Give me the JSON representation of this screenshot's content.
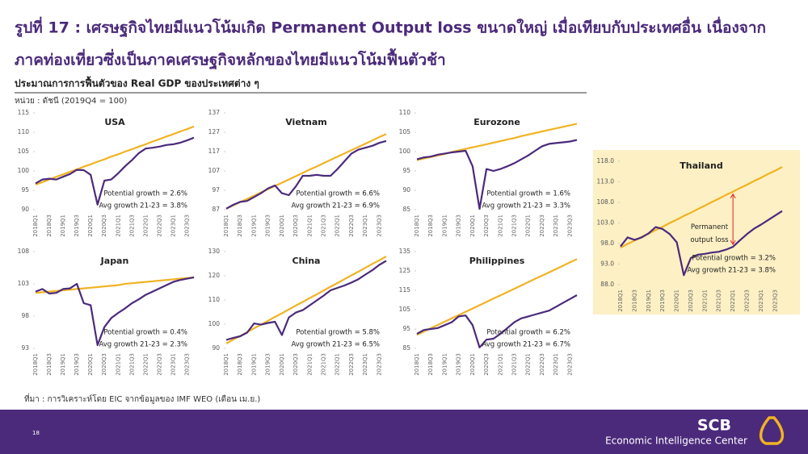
{
  "slide": {
    "title_line1": "รูปที่ 17 : เศรษฐกิจไทยมีแนวโน้มเกิด Permanent Output loss ขนาดใหญ่ เมื่อเทียบกับประเทศอื่น เนื่องจาก",
    "title_line2": "ภาคท่องเที่ยวซึ่งเป็นภาคเศรษฐกิจหลักของไทยมีแนวโน้มฟื้นตัวช้า",
    "subtitle": "ประมาณการการฟื้นตัวของ Real GDP ของประเทศต่าง ๆ",
    "unit": "หน่วย : ดัชนี (2019Q4 = 100)",
    "source": "ที่มา : การวิเคราะห์โดย EIC จากข้อมูลของ IMF WEO (เดือน เม.ย.)",
    "page": "18",
    "logo_name": "SCB",
    "logo_tagline": "Economic Intelligence Center"
  },
  "chart_data": [
    {
      "type": "line",
      "title": "USA",
      "categories": [
        "2018Q1",
        null,
        "2018Q3",
        null,
        "2019Q1",
        null,
        "2019Q3",
        null,
        "2020Q1",
        null,
        "2020Q3",
        null,
        "2021Q1",
        null,
        "2021Q3",
        null,
        "2022Q1",
        null,
        "2022Q3",
        null,
        "2023Q1",
        null,
        "2023Q3",
        null
      ],
      "series": [
        {
          "color": "#f0b323",
          "values": [
            96.5,
            97.1,
            97.8,
            98.5,
            99.1,
            99.8,
            100.4,
            101.1,
            101.7,
            102.4,
            103.0,
            103.7,
            104.3,
            105.0,
            105.6,
            106.3,
            106.9,
            107.6,
            108.2,
            108.9,
            109.5,
            110.2,
            110.8,
            111.5
          ]
        },
        {
          "color": "#4b2a7b",
          "values": [
            96.8,
            97.8,
            98.0,
            97.8,
            98.5,
            99.2,
            100.3,
            100.2,
            99.0,
            91.3,
            97.5,
            97.8,
            99.4,
            101.2,
            102.8,
            104.6,
            105.8,
            106.0,
            106.3,
            106.7,
            106.9,
            107.3,
            107.9,
            108.6
          ]
        }
      ],
      "ylim": [
        90,
        115
      ],
      "yticks": [
        90,
        95,
        100,
        105,
        110,
        115
      ],
      "annotations": [
        "Potential growth = 2.6%",
        "Avg growth 21-23 = 3.8%"
      ]
    },
    {
      "type": "line",
      "title": "Vietnam",
      "categories": [
        "2018Q1",
        null,
        "2018Q3",
        null,
        "2019Q1",
        null,
        "2019Q3",
        null,
        "2020Q1",
        null,
        "2020Q3",
        null,
        "2021Q1",
        null,
        "2021Q3",
        null,
        "2022Q1",
        null,
        "2022Q3",
        null,
        "2023Q1",
        null,
        "2023Q3",
        null
      ],
      "series": [
        {
          "color": "#f0b323",
          "values": [
            87.5,
            89.2,
            90.9,
            92.5,
            94.2,
            95.9,
            97.6,
            99.3,
            100.9,
            102.6,
            104.3,
            106.0,
            107.7,
            109.3,
            111.0,
            112.7,
            114.4,
            116.1,
            117.7,
            119.4,
            121.1,
            122.8,
            124.5,
            126.1
          ]
        },
        {
          "color": "#4b2a7b",
          "values": [
            87.5,
            89.5,
            91.0,
            91.5,
            93.5,
            95.5,
            98.0,
            99.5,
            95.5,
            94.5,
            99.0,
            104.5,
            104.5,
            105.0,
            104.5,
            104.5,
            108.0,
            112.0,
            116.0,
            118.0,
            119.0,
            120.0,
            121.5,
            122.5
          ]
        }
      ],
      "ylim": [
        87,
        137
      ],
      "yticks": [
        87,
        97,
        107,
        117,
        127,
        137
      ],
      "annotations": [
        "Potential growth = 6.6%",
        "Avg growth 21-23 = 6.9%"
      ]
    },
    {
      "type": "line",
      "title": "Eurozone",
      "categories": [
        "2018Q1",
        null,
        "2018Q3",
        null,
        "2019Q1",
        null,
        "2019Q3",
        null,
        "2020Q1",
        null,
        "2020Q3",
        null,
        "2021Q1",
        null,
        "2021Q3",
        null,
        "2022Q1",
        null,
        "2022Q3",
        null,
        "2023Q1",
        null,
        "2023Q3",
        null
      ],
      "series": [
        {
          "color": "#f0b323",
          "values": [
            97.8,
            98.2,
            98.6,
            99.0,
            99.4,
            99.9,
            100.3,
            100.7,
            101.1,
            101.5,
            101.9,
            102.3,
            102.7,
            103.1,
            103.5,
            104.0,
            104.4,
            104.8,
            105.2,
            105.6,
            106.0,
            106.4,
            106.8,
            107.2
          ]
        },
        {
          "color": "#4b2a7b",
          "values": [
            98.0,
            98.5,
            98.7,
            99.2,
            99.5,
            99.8,
            100.0,
            100.2,
            96.2,
            85.2,
            95.5,
            95.0,
            95.5,
            96.2,
            97.0,
            98.0,
            99.0,
            100.2,
            101.4,
            102.0,
            102.2,
            102.4,
            102.6,
            103.0
          ]
        }
      ],
      "ylim": [
        85,
        110
      ],
      "yticks": [
        85,
        90,
        95,
        100,
        105,
        110
      ],
      "annotations": [
        "Potential growth = 1.6%",
        "Avg growth 21-23 = 3.3%"
      ]
    },
    {
      "type": "line",
      "title": "Japan",
      "categories": [
        "2018Q1",
        null,
        "2018Q3",
        null,
        "2019Q1",
        null,
        "2019Q3",
        null,
        "2020Q1",
        null,
        "2020Q3",
        null,
        "2021Q1",
        null,
        "2021Q3",
        null,
        "2022Q1",
        null,
        "2022Q3",
        null,
        "2023Q1",
        null,
        "2023Q3",
        null
      ],
      "series": [
        {
          "color": "#f0b323",
          "values": [
            101.6,
            101.7,
            101.8,
            101.9,
            102.0,
            102.1,
            102.2,
            102.3,
            102.4,
            102.5,
            102.6,
            102.7,
            102.8,
            103.0,
            103.1,
            103.2,
            103.3,
            103.4,
            103.5,
            103.6,
            103.7,
            103.8,
            103.9,
            104.0
          ]
        },
        {
          "color": "#4b2a7b",
          "values": [
            101.8,
            102.2,
            101.5,
            101.6,
            102.2,
            102.3,
            103.0,
            100.0,
            99.7,
            93.5,
            96.3,
            97.7,
            98.5,
            99.2,
            100.0,
            100.6,
            101.3,
            101.8,
            102.3,
            102.8,
            103.3,
            103.6,
            103.8,
            104.0
          ]
        }
      ],
      "ylim": [
        93,
        108
      ],
      "yticks": [
        93,
        98,
        103,
        108
      ],
      "annotations": [
        "Potential growth = 0.4%",
        "Avg growth 21-23 = 2.3%"
      ]
    },
    {
      "type": "line",
      "title": "China",
      "categories": [
        "2018Q1",
        null,
        "2018Q3",
        null,
        "2019Q1",
        null,
        "2019Q3",
        null,
        "2020Q1",
        null,
        "2020Q3",
        null,
        "2021Q1",
        null,
        "2021Q3",
        null,
        "2022Q1",
        null,
        "2022Q3",
        null,
        "2023Q1",
        null,
        "2023Q3",
        null
      ],
      "series": [
        {
          "color": "#f0b323",
          "values": [
            92.0,
            93.6,
            95.1,
            96.7,
            98.3,
            99.8,
            101.4,
            103.0,
            104.5,
            106.1,
            107.7,
            109.2,
            110.8,
            112.3,
            113.9,
            115.5,
            117.0,
            118.6,
            120.2,
            121.7,
            123.3,
            124.9,
            126.4,
            128.0
          ]
        },
        {
          "color": "#4b2a7b",
          "values": [
            93.5,
            94.3,
            95.0,
            96.5,
            100.3,
            99.8,
            100.5,
            101.0,
            95.5,
            102.8,
            104.8,
            105.8,
            107.8,
            109.8,
            111.8,
            114.0,
            115.0,
            116.0,
            117.2,
            118.6,
            120.5,
            122.3,
            124.5,
            126.2
          ]
        }
      ],
      "ylim": [
        90,
        130
      ],
      "yticks": [
        90,
        100,
        110,
        120,
        130
      ],
      "annotations": [
        "Potential growth = 5.8%",
        "Avg growth 21-23 = 6.5%"
      ]
    },
    {
      "type": "line",
      "title": "Philippines",
      "categories": [
        "2018Q1",
        null,
        "2018Q3",
        null,
        "2019Q1",
        null,
        "2019Q3",
        null,
        "2020Q1",
        null,
        "2020Q3",
        null,
        "2021Q1",
        null,
        "2021Q3",
        null,
        "2022Q1",
        null,
        "2022Q3",
        null,
        "2023Q1",
        null,
        "2023Q3",
        null
      ],
      "series": [
        {
          "color": "#f0b323",
          "values": [
            92.0,
            93.7,
            95.4,
            97.1,
            98.8,
            100.5,
            102.2,
            103.9,
            105.6,
            107.3,
            109.0,
            110.7,
            112.4,
            114.1,
            115.8,
            117.5,
            119.2,
            120.9,
            122.6,
            124.3,
            126.0,
            127.7,
            129.4,
            131.1
          ]
        },
        {
          "color": "#4b2a7b",
          "values": [
            92.5,
            94.5,
            95.0,
            95.5,
            97.0,
            98.5,
            101.5,
            102.0,
            97.0,
            85.5,
            89.5,
            90.0,
            92.5,
            95.5,
            98.5,
            100.5,
            101.5,
            102.5,
            103.5,
            104.5,
            106.5,
            108.5,
            110.5,
            112.5
          ]
        }
      ],
      "ylim": [
        85,
        135
      ],
      "yticks": [
        85,
        95,
        105,
        115,
        125,
        135
      ],
      "annotations": [
        "Potential growth = 6.2%",
        "Avg growth 21-23 = 6.7%"
      ]
    },
    {
      "type": "line",
      "title": "Thailand",
      "categories": [
        "2018Q1",
        null,
        "2018Q3",
        null,
        "2019Q1",
        null,
        "2019Q3",
        null,
        "2020Q1",
        null,
        "2020Q3",
        null,
        "2021Q1",
        null,
        "2021Q3",
        null,
        "2022Q1",
        null,
        "2022Q3",
        null,
        "2023Q1",
        null,
        "2023Q3",
        null
      ],
      "series": [
        {
          "color": "#f0b323",
          "values": [
            97.0,
            97.9,
            98.7,
            99.6,
            100.4,
            101.3,
            102.1,
            103.0,
            103.8,
            104.7,
            105.5,
            106.4,
            107.2,
            108.1,
            108.9,
            109.8,
            110.6,
            111.5,
            112.3,
            113.2,
            114.0,
            114.9,
            115.7,
            116.6
          ]
        },
        {
          "color": "#4b2a7b",
          "values": [
            97.3,
            99.5,
            98.9,
            99.5,
            100.5,
            102.0,
            101.5,
            100.3,
            98.3,
            90.3,
            94.5,
            95.3,
            95.5,
            95.8,
            96.0,
            96.5,
            97.2,
            98.8,
            100.3,
            101.6,
            102.6,
            103.7,
            104.8,
            105.9
          ]
        }
      ],
      "ylim": [
        88,
        118
      ],
      "yticks": [
        {
          "value": 88,
          "label": "88.0"
        },
        {
          "value": 93,
          "label": "93.0"
        },
        {
          "value": 98,
          "label": "98.0"
        },
        {
          "value": 103,
          "label": "103.0"
        },
        {
          "value": 108,
          "label": "108.0"
        },
        {
          "value": 113,
          "label": "113.0"
        },
        {
          "value": 118,
          "label": "118.0"
        }
      ],
      "annotations": [
        "Permanent",
        "output loss",
        "Potential growth = 3.2%",
        "Avg growth 21-23 = 3.8%"
      ]
    }
  ]
}
